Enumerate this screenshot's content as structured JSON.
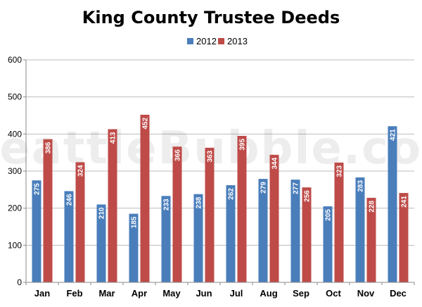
{
  "chart_data": {
    "type": "bar",
    "title": "King County Trustee Deeds",
    "categories": [
      "Jan",
      "Feb",
      "Mar",
      "Apr",
      "May",
      "Jun",
      "Jul",
      "Aug",
      "Sep",
      "Oct",
      "Nov",
      "Dec"
    ],
    "series": [
      {
        "name": "2012",
        "color": "#4a7ebb",
        "values": [
          275,
          246,
          210,
          185,
          233,
          238,
          262,
          279,
          277,
          205,
          283,
          421
        ]
      },
      {
        "name": "2013",
        "color": "#be4b48",
        "values": [
          386,
          324,
          413,
          452,
          366,
          363,
          395,
          344,
          256,
          323,
          228,
          241
        ]
      }
    ],
    "ylim": [
      0,
      600
    ],
    "yticks": [
      0,
      100,
      200,
      300,
      400,
      500,
      600
    ],
    "xlabel": "",
    "ylabel": "",
    "grid": true,
    "legend": "top-center",
    "watermark": "SeattleBubble.com"
  }
}
